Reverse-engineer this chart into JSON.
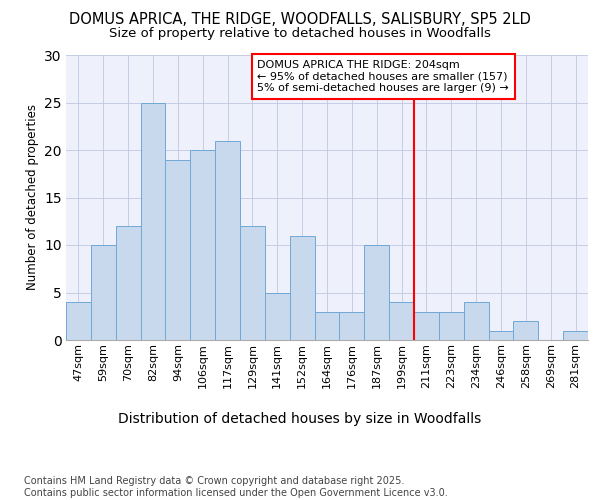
{
  "title": "DOMUS APRICA, THE RIDGE, WOODFALLS, SALISBURY, SP5 2LD",
  "subtitle": "Size of property relative to detached houses in Woodfalls",
  "xlabel": "Distribution of detached houses by size in Woodfalls",
  "ylabel": "Number of detached properties",
  "footer": "Contains HM Land Registry data © Crown copyright and database right 2025.\nContains public sector information licensed under the Open Government Licence v3.0.",
  "categories": [
    "47sqm",
    "59sqm",
    "70sqm",
    "82sqm",
    "94sqm",
    "106sqm",
    "117sqm",
    "129sqm",
    "141sqm",
    "152sqm",
    "164sqm",
    "176sqm",
    "187sqm",
    "199sqm",
    "211sqm",
    "223sqm",
    "234sqm",
    "246sqm",
    "258sqm",
    "269sqm",
    "281sqm"
  ],
  "values": [
    4,
    10,
    12,
    25,
    19,
    20,
    21,
    12,
    5,
    11,
    3,
    3,
    10,
    4,
    3,
    3,
    4,
    1,
    2,
    0,
    1
  ],
  "bar_color": "#c9d9ed",
  "bar_edge_color": "#6fa8d6",
  "reference_line_x": 13.5,
  "annotation_text": "DOMUS APRICA THE RIDGE: 204sqm\n← 95% of detached houses are smaller (157)\n5% of semi-detached houses are larger (9) →",
  "ylim": [
    0,
    30
  ],
  "yticks": [
    0,
    5,
    10,
    15,
    20,
    25,
    30
  ],
  "background_color": "#eef1fb",
  "grid_color": "#c0c8e0",
  "title_fontsize": 10.5,
  "subtitle_fontsize": 9.5,
  "xlabel_fontsize": 10,
  "ylabel_fontsize": 8.5,
  "tick_fontsize": 8,
  "annotation_fontsize": 8,
  "footer_fontsize": 7
}
